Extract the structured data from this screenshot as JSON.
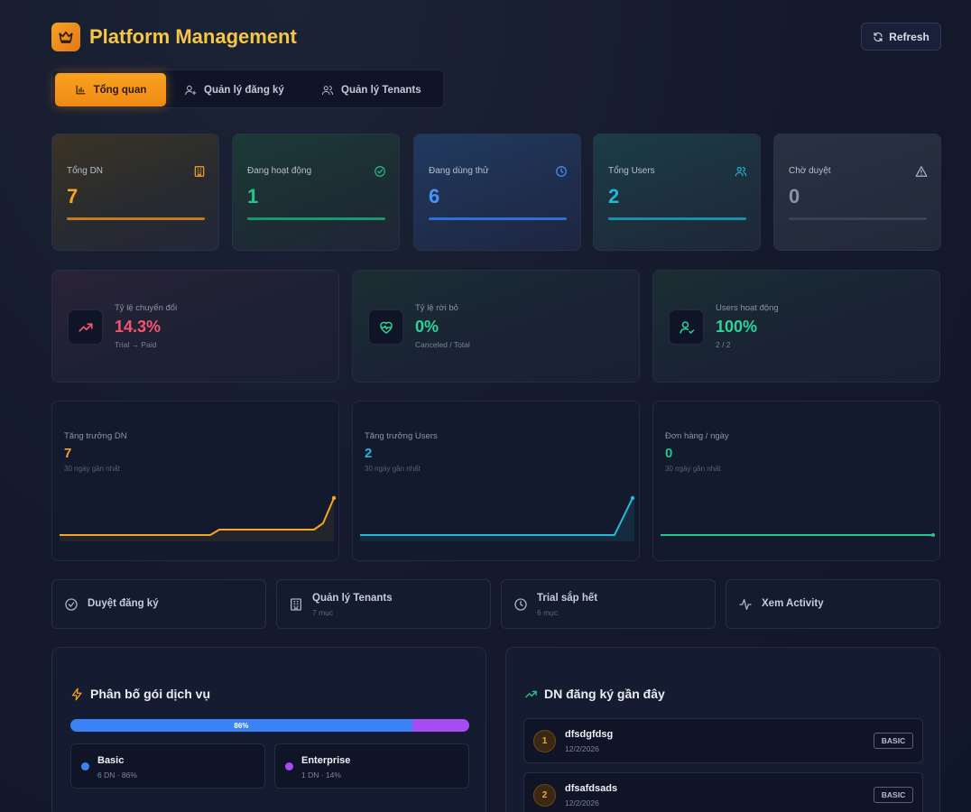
{
  "header": {
    "title": "Platform Management",
    "refresh_label": "Refresh"
  },
  "tabs": [
    {
      "label": "Tổng quan",
      "icon": "bar-chart-icon",
      "active": true
    },
    {
      "label": "Quản lý đăng ký",
      "icon": "user-plus-icon",
      "active": false
    },
    {
      "label": "Quản lý Tenants",
      "icon": "users-icon",
      "active": false
    }
  ],
  "stats": [
    {
      "label": "Tổng DN",
      "value": "7",
      "icon": "building-icon",
      "color": "#f5a623"
    },
    {
      "label": "Đang hoạt động",
      "value": "1",
      "icon": "check-circle-icon",
      "color": "#22c58b"
    },
    {
      "label": "Đang dùng thử",
      "value": "6",
      "icon": "clock-icon",
      "color": "#3b82f6"
    },
    {
      "label": "Tổng Users",
      "value": "2",
      "icon": "users-icon",
      "color": "#22b8d8"
    },
    {
      "label": "Chờ duyệt",
      "value": "0",
      "icon": "warning-icon",
      "color": "#8a93a6"
    }
  ],
  "metrics": [
    {
      "label": "Tỷ lệ chuyển đổi",
      "value": "14.3%",
      "sub": "Trial → Paid",
      "icon": "trending-up-icon",
      "color": "#f4566f"
    },
    {
      "label": "Tỷ lệ rời bỏ",
      "value": "0%",
      "sub": "Canceled / Total",
      "icon": "heart-pulse-icon",
      "color": "#2fd39a"
    },
    {
      "label": "Users hoạt động",
      "value": "100%",
      "sub": "2 / 2",
      "icon": "user-check-icon",
      "color": "#2fd39a"
    }
  ],
  "sparks": [
    {
      "label": "Tăng trưởng DN",
      "value": "7",
      "sub": "30 ngày gần nhất",
      "color": "#f5a623"
    },
    {
      "label": "Tăng trưởng Users",
      "value": "2",
      "sub": "30 ngày gần nhất",
      "color": "#22b8d8"
    },
    {
      "label": "Đơn hàng / ngày",
      "value": "0",
      "sub": "30 ngày gần nhất",
      "color": "#22c58b"
    }
  ],
  "actions": [
    {
      "label": "Duyệt đăng ký",
      "sub": "",
      "icon": "check-circle-icon"
    },
    {
      "label": "Quản lý Tenants",
      "sub": "7 mục",
      "icon": "building-icon"
    },
    {
      "label": "Trial sắp hết",
      "sub": "6 mục",
      "icon": "clock-icon"
    },
    {
      "label": "Xem Activity",
      "sub": "",
      "icon": "activity-icon"
    }
  ],
  "distribution": {
    "title": "Phân bố gói dịch vụ",
    "basic_pct_label": "86%",
    "basic_fraction": 0.857,
    "plans": [
      {
        "name": "Basic",
        "meta": "6 DN · 86%",
        "color": "#3b82f6"
      },
      {
        "name": "Enterprise",
        "meta": "1 DN · 14%",
        "color": "#a64cf2"
      }
    ]
  },
  "recent": {
    "title": "DN đăng ký gần đây",
    "items": [
      {
        "rank": "1",
        "name": "dfsdgfdsg",
        "date": "12/2/2026",
        "plan": "BASIC"
      },
      {
        "rank": "2",
        "name": "dfsafdsads",
        "date": "12/2/2026",
        "plan": "BASIC"
      }
    ]
  }
}
